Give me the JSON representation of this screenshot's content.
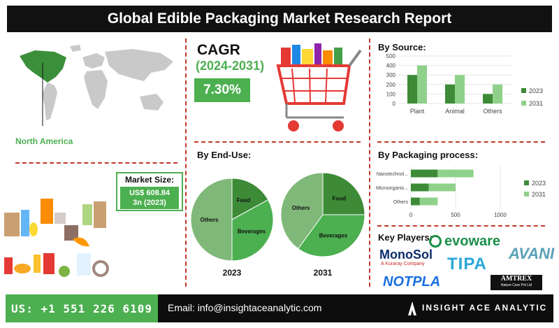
{
  "title": "Global Edible Packaging Market Research Report",
  "region": "North America",
  "cagr": {
    "label": "CAGR",
    "years": "(2024-2031)",
    "value": "7.30%"
  },
  "market_size": {
    "title": "Market Size:",
    "line1": "US$ 608.84",
    "line2": "3n (2023)"
  },
  "sections": {
    "source": "By Source:",
    "end_use": "By End-Use:",
    "packaging": "By Packaging process:",
    "key_players": "Key Players:"
  },
  "players": [
    "evoware",
    "MonoSol",
    "A Kuraray Company",
    "AVANI",
    "TIPA",
    "NOTPLA",
    "AMTREX",
    "Nature Care Pvt Ltd"
  ],
  "footer": {
    "phone": "US: +1 551 226 6109",
    "email": "Email: info@insightaceanalytic.com",
    "brand": "INSIGHT ACE ANALYTIC"
  },
  "colors": {
    "dark": "#3d8b37",
    "light": "#8fd18a",
    "accent": "#4caf50",
    "divider": "#c0392b"
  },
  "chart_data": [
    {
      "type": "bar",
      "categories": [
        "Plant",
        "Animal",
        "Others"
      ],
      "series": [
        {
          "name": "2023",
          "values": [
            300,
            200,
            100
          ]
        },
        {
          "name": "2031",
          "values": [
            400,
            300,
            200
          ]
        }
      ],
      "ylim": [
        0,
        500
      ],
      "yticks": [
        "0",
        "100",
        "200",
        "300",
        "400",
        "500"
      ],
      "legend": "right"
    },
    {
      "type": "bar",
      "orientation": "horizontal",
      "stacked": true,
      "categories": [
        "Nanotechnol...",
        "Microorganis...",
        "Others"
      ],
      "series": [
        {
          "name": "2023",
          "values": [
            300,
            200,
            100
          ]
        },
        {
          "name": "2031",
          "values": [
            400,
            300,
            200
          ]
        }
      ],
      "xlim": [
        0,
        1000
      ],
      "xticks": [
        "0",
        "500",
        "1000"
      ],
      "legend": "right"
    },
    {
      "type": "pie",
      "label": "2023",
      "slices": [
        {
          "name": "Food",
          "value": 17
        },
        {
          "name": "Beverages",
          "value": 33
        },
        {
          "name": "Others",
          "value": 50
        }
      ]
    },
    {
      "type": "pie",
      "label": "2031",
      "slices": [
        {
          "name": "Food",
          "value": 25
        },
        {
          "name": "Beverages",
          "value": 35
        },
        {
          "name": "Others",
          "value": 40
        }
      ]
    }
  ]
}
